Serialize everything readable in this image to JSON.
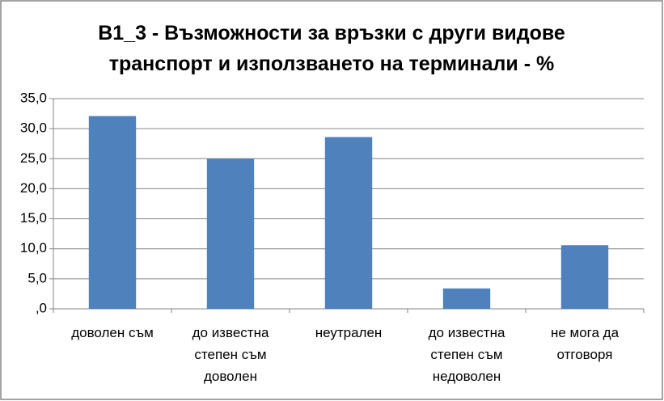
{
  "chart_data": {
    "type": "bar",
    "title": "B1_3 - Възможности за връзки с други видове транспорт и използването на терминали -  %",
    "categories": [
      "доволен съм",
      "до известна степен съм доволен",
      "неутрален",
      "до известна степен съм недоволен",
      "не мога да отговоря"
    ],
    "values": [
      32.1,
      25.0,
      28.6,
      3.4,
      10.6
    ],
    "color": "#4f81bd",
    "ylim": [
      0,
      35
    ],
    "yticks": [
      {
        "value": 0,
        "label": ",0"
      },
      {
        "value": 5,
        "label": "5,0"
      },
      {
        "value": 10,
        "label": "10,0"
      },
      {
        "value": 15,
        "label": "15,0"
      },
      {
        "value": 20,
        "label": "20,0"
      },
      {
        "value": 25,
        "label": "25,0"
      },
      {
        "value": 30,
        "label": "30,0"
      },
      {
        "value": 35,
        "label": "35,0"
      }
    ],
    "grid": true
  }
}
